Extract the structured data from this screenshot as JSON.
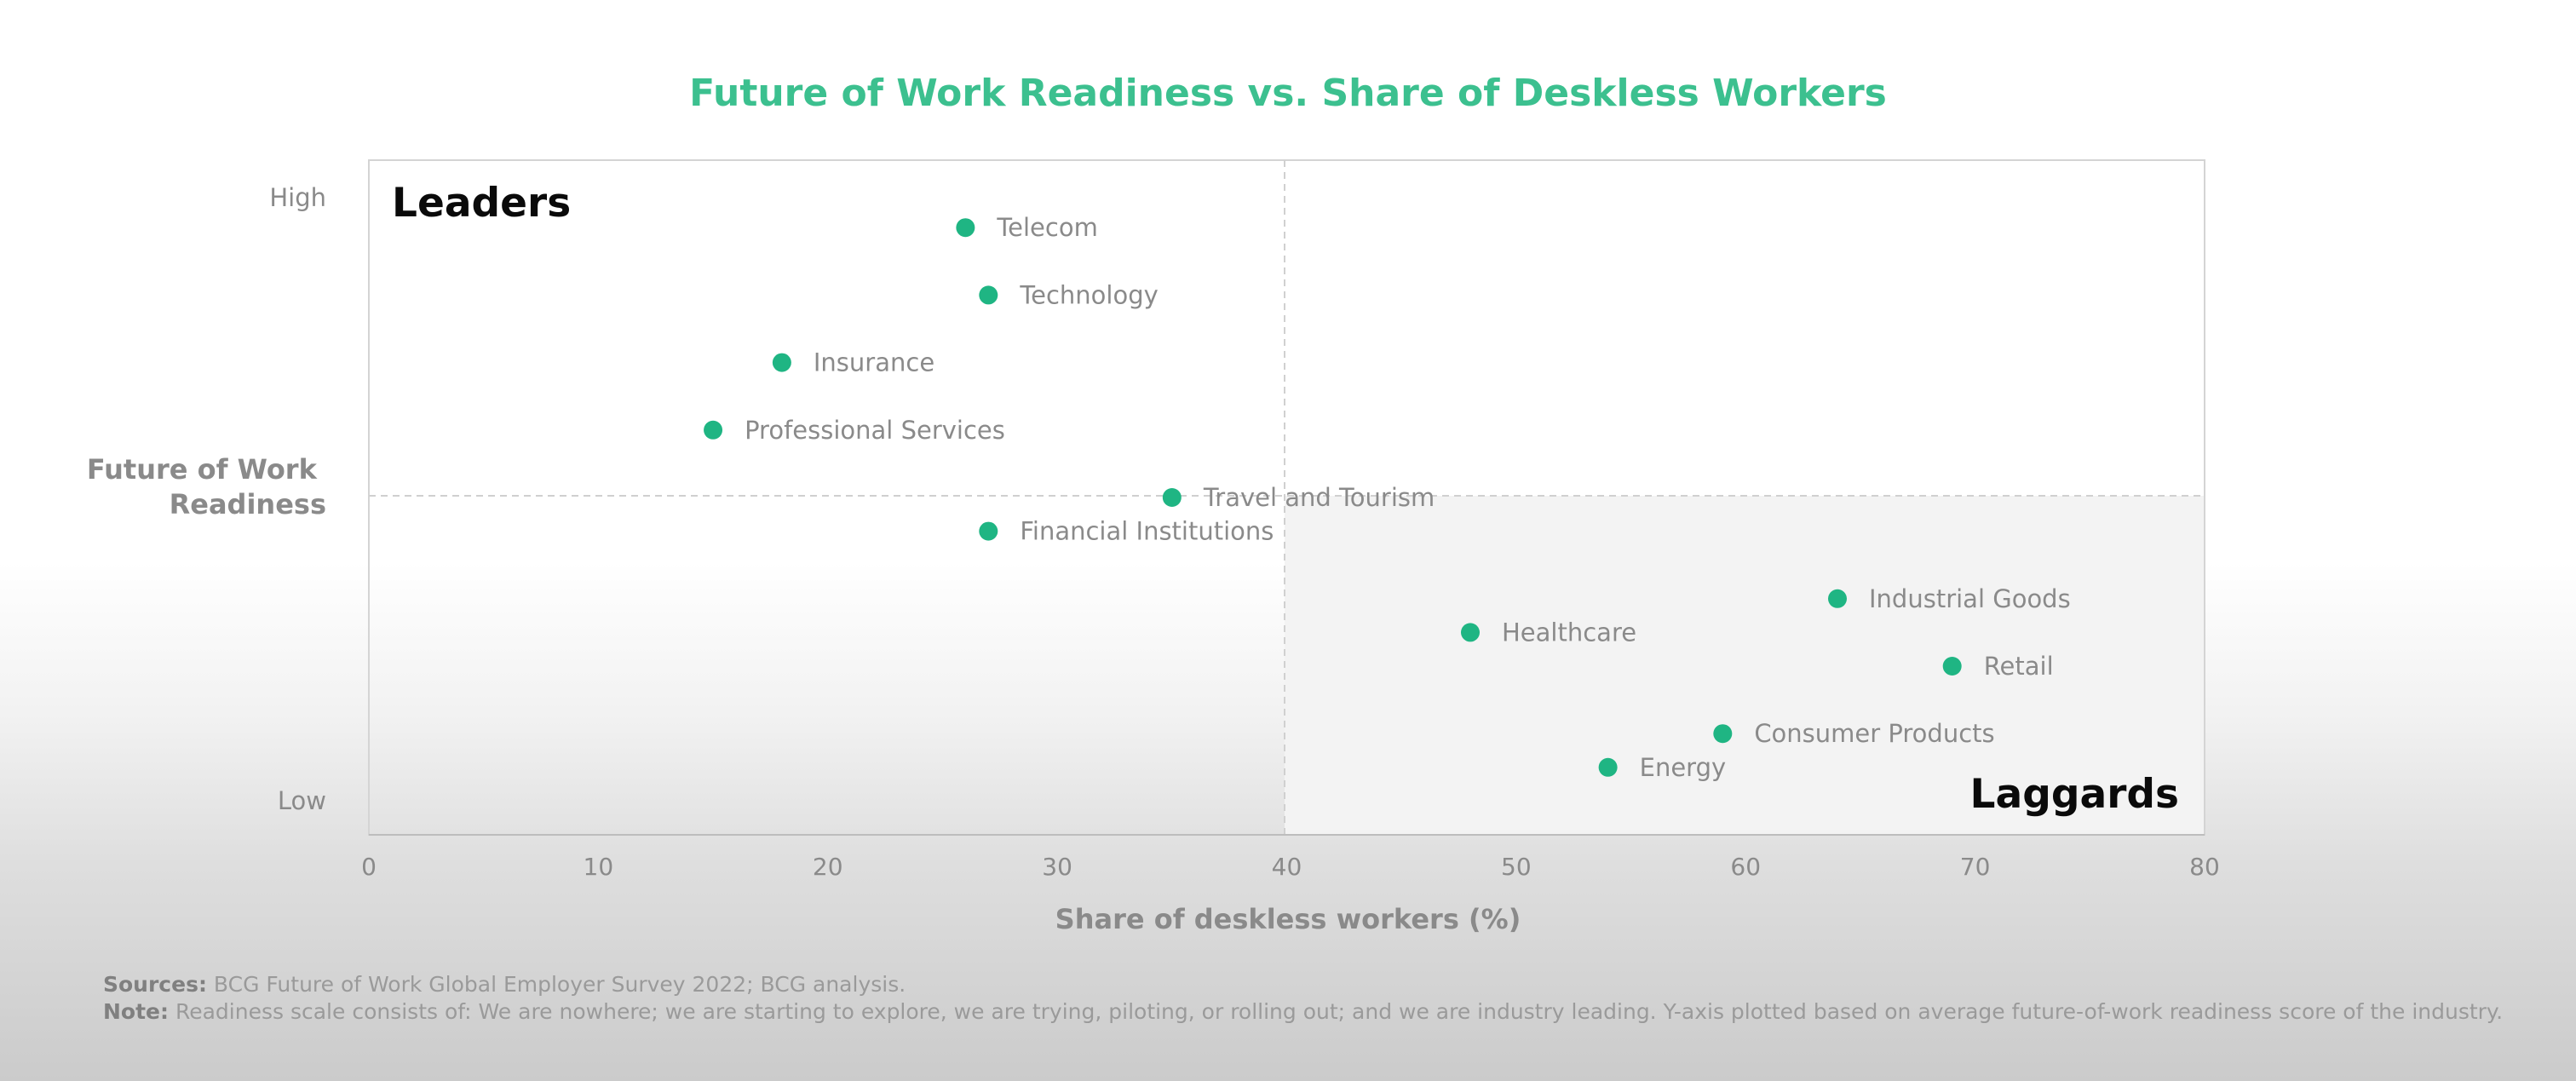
{
  "colors": {
    "accent": "#1fb583",
    "title": "#3cc08f",
    "axis_text": "#8a8a8a",
    "quadrant_shade": "#f2f2f2"
  },
  "chart_data": {
    "type": "scatter",
    "title": "Future of Work Readiness vs. Share of Deskless Workers",
    "xlabel": "Share of deskless workers (%)",
    "ylabel": "Future of Work Readiness",
    "xlim": [
      0,
      80
    ],
    "xticks": [
      "0",
      "10",
      "20",
      "30",
      "40",
      "50",
      "60",
      "70",
      "80"
    ],
    "ylim": [
      0,
      10
    ],
    "ytick_labels": {
      "high": "High",
      "low": "Low"
    },
    "quadrant_labels": {
      "top_left": "Leaders",
      "bottom_right": "Laggards"
    },
    "dividers": {
      "x": 40,
      "y": 5
    },
    "grid": false,
    "points": [
      {
        "label": "Telecom",
        "x": 26,
        "y": 9
      },
      {
        "label": "Technology",
        "x": 27,
        "y": 8
      },
      {
        "label": "Insurance",
        "x": 18,
        "y": 7
      },
      {
        "label": "Professional Services",
        "x": 15,
        "y": 6
      },
      {
        "label": "Travel and Tourism",
        "x": 35,
        "y": 5
      },
      {
        "label": "Financial Institutions",
        "x": 27,
        "y": 4.5
      },
      {
        "label": "Industrial Goods",
        "x": 64,
        "y": 3.5
      },
      {
        "label": "Healthcare",
        "x": 48,
        "y": 3
      },
      {
        "label": "Retail",
        "x": 69,
        "y": 2.5
      },
      {
        "label": "Consumer Products",
        "x": 59,
        "y": 1.5
      },
      {
        "label": "Energy",
        "x": 54,
        "y": 1
      }
    ]
  },
  "footer": {
    "sources_label": "Sources:",
    "sources_text": "BCG Future of Work Global Employer Survey 2022; BCG analysis.",
    "note_label": "Note:",
    "note_text": "Readiness scale consists of: We are nowhere; we are starting to explore, we are trying, piloting, or rolling out; and we are industry leading. Y-axis plotted based on average future-of-work readiness score of the industry."
  }
}
